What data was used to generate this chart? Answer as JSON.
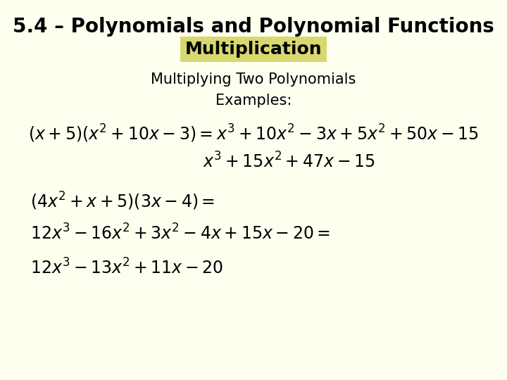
{
  "background_color": "#fffff0",
  "title": "5.4 – Polynomials and Polynomial Functions",
  "subtitle": "Multiplication",
  "subtitle_bg": "#d8d870",
  "line3": "Multiplying Two Polynomials",
  "line4": "Examples:",
  "title_fontsize": 20,
  "subtitle_fontsize": 18,
  "body_fontsize": 15,
  "eq_fontsize": 17
}
